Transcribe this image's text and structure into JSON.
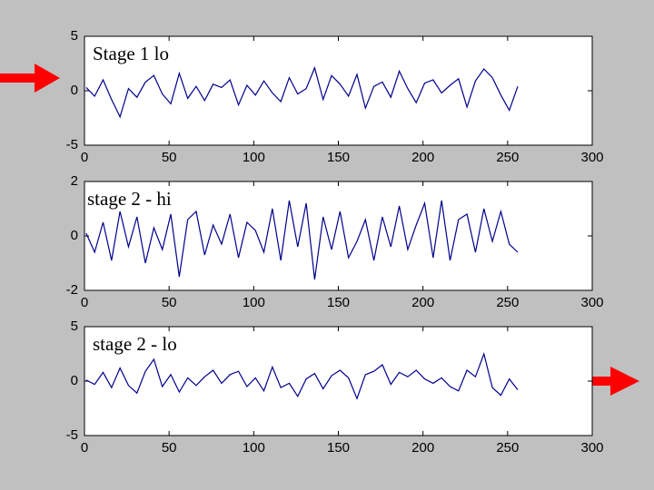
{
  "chart_data": [
    {
      "type": "line",
      "annotation": "Stage 1 lo",
      "x": [
        1,
        6,
        11,
        16,
        21,
        26,
        31,
        36,
        41,
        46,
        51,
        56,
        61,
        66,
        71,
        76,
        81,
        86,
        91,
        96,
        101,
        106,
        111,
        116,
        121,
        126,
        131,
        136,
        141,
        146,
        151,
        156,
        161,
        166,
        171,
        176,
        181,
        186,
        191,
        196,
        201,
        206,
        211,
        216,
        221,
        226,
        231,
        236,
        241,
        246,
        251,
        256
      ],
      "values": [
        0.3,
        -0.5,
        1.0,
        -0.8,
        -2.4,
        0.2,
        -0.6,
        0.8,
        1.4,
        -0.3,
        -1.2,
        1.6,
        -0.7,
        0.4,
        -0.9,
        0.6,
        0.3,
        1.0,
        -1.3,
        0.5,
        -0.4,
        0.9,
        -0.2,
        -1.0,
        1.2,
        -0.3,
        0.2,
        2.1,
        -0.8,
        1.4,
        0.6,
        -0.5,
        1.5,
        -1.6,
        0.4,
        0.8,
        -0.6,
        1.8,
        0.2,
        -1.1,
        0.7,
        1.0,
        -0.2,
        0.5,
        1.1,
        -1.5,
        0.9,
        2.0,
        1.2,
        -0.4,
        -1.8,
        0.4
      ],
      "color": "#00008b",
      "xlim": [
        0,
        300
      ],
      "xticks": [
        0,
        50,
        100,
        150,
        200,
        250,
        300
      ],
      "ylim": [
        -5,
        5
      ],
      "yticks": [
        -5,
        0,
        5
      ]
    },
    {
      "type": "line",
      "annotation": "stage 2 - hi",
      "x": [
        1,
        6,
        11,
        16,
        21,
        26,
        31,
        36,
        41,
        46,
        51,
        56,
        61,
        66,
        71,
        76,
        81,
        86,
        91,
        96,
        101,
        106,
        111,
        116,
        121,
        126,
        131,
        136,
        141,
        146,
        151,
        156,
        161,
        166,
        171,
        176,
        181,
        186,
        191,
        196,
        201,
        206,
        211,
        216,
        221,
        226,
        231,
        236,
        241,
        246,
        251,
        256
      ],
      "values": [
        0.1,
        -0.6,
        0.5,
        -0.9,
        0.9,
        -0.4,
        0.7,
        -1.0,
        0.3,
        -0.5,
        0.8,
        -1.5,
        0.6,
        0.9,
        -0.7,
        0.4,
        -0.3,
        0.8,
        -0.8,
        0.5,
        0.2,
        -0.6,
        1.0,
        -0.9,
        1.3,
        -0.4,
        1.2,
        -1.6,
        0.7,
        -0.5,
        0.9,
        -0.8,
        -0.2,
        0.6,
        -0.9,
        0.7,
        -0.4,
        1.1,
        -0.5,
        0.4,
        1.2,
        -0.8,
        1.3,
        -0.9,
        0.6,
        0.8,
        -0.6,
        1.0,
        -0.2,
        0.9,
        -0.3,
        -0.6
      ],
      "color": "#00008b",
      "xlim": [
        0,
        300
      ],
      "xticks": [
        0,
        50,
        100,
        150,
        200,
        250,
        300
      ],
      "ylim": [
        -2,
        2
      ],
      "yticks": [
        -2,
        0,
        2
      ]
    },
    {
      "type": "line",
      "annotation": "stage 2 - lo",
      "x": [
        1,
        6,
        11,
        16,
        21,
        26,
        31,
        36,
        41,
        46,
        51,
        56,
        61,
        66,
        71,
        76,
        81,
        86,
        91,
        96,
        101,
        106,
        111,
        116,
        121,
        126,
        131,
        136,
        141,
        146,
        151,
        156,
        161,
        166,
        171,
        176,
        181,
        186,
        191,
        196,
        201,
        206,
        211,
        216,
        221,
        226,
        231,
        236,
        241,
        246,
        251,
        256
      ],
      "values": [
        0.1,
        -0.3,
        0.8,
        -0.6,
        1.2,
        -0.4,
        -1.1,
        0.9,
        2.0,
        -0.5,
        0.6,
        -1.0,
        0.3,
        -0.4,
        0.4,
        1.0,
        -0.2,
        0.6,
        0.9,
        -0.5,
        0.3,
        -0.9,
        1.3,
        -0.6,
        -0.2,
        -1.4,
        0.2,
        0.7,
        -0.7,
        0.5,
        1.0,
        0.3,
        -1.6,
        0.6,
        0.9,
        1.5,
        -0.3,
        0.8,
        0.4,
        1.0,
        0.2,
        -0.2,
        0.3,
        -0.5,
        -0.9,
        1.0,
        0.4,
        2.5,
        -0.6,
        -1.3,
        0.2,
        -0.8
      ],
      "color": "#00008b",
      "xlim": [
        0,
        300
      ],
      "xticks": [
        0,
        50,
        100,
        150,
        200,
        250,
        300
      ],
      "ylim": [
        -5,
        5
      ],
      "yticks": [
        -5,
        0,
        5
      ]
    }
  ]
}
